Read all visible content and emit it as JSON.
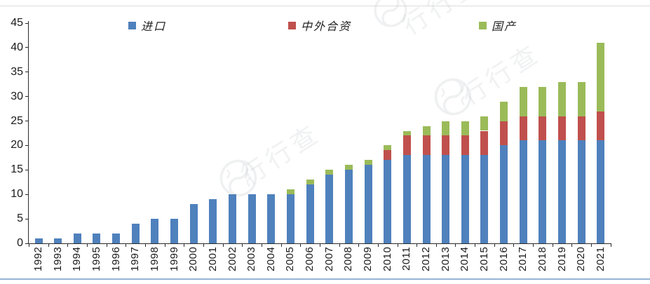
{
  "chart_data": {
    "type": "bar",
    "stacked": true,
    "categories": [
      "1992",
      "1993",
      "1994",
      "1995",
      "1996",
      "1997",
      "1998",
      "1999",
      "2000",
      "2001",
      "2002",
      "2003",
      "2004",
      "2005",
      "2006",
      "2007",
      "2008",
      "2009",
      "2010",
      "2011",
      "2012",
      "2013",
      "2014",
      "2015",
      "2016",
      "2017",
      "2018",
      "2019",
      "2020",
      "2021"
    ],
    "series": [
      {
        "name": "进口",
        "color": "#4F81BD",
        "values": [
          1,
          1,
          2,
          2,
          2,
          4,
          5,
          5,
          8,
          9,
          10,
          10,
          10,
          10,
          12,
          14,
          15,
          16,
          17,
          18,
          18,
          18,
          18,
          18,
          20,
          21,
          21,
          21,
          21,
          21
        ]
      },
      {
        "name": "中外合资",
        "color": "#C0504D",
        "values": [
          0,
          0,
          0,
          0,
          0,
          0,
          0,
          0,
          0,
          0,
          0,
          0,
          0,
          0,
          0,
          0,
          0,
          0,
          2,
          4,
          4,
          4,
          4,
          5,
          5,
          5,
          5,
          5,
          5,
          6
        ]
      },
      {
        "name": "国产",
        "color": "#9BBB59",
        "values": [
          0,
          0,
          0,
          0,
          0,
          0,
          0,
          0,
          0,
          0,
          0,
          0,
          0,
          1,
          1,
          1,
          1,
          1,
          1,
          1,
          2,
          3,
          3,
          3,
          4,
          6,
          6,
          7,
          7,
          14
        ]
      }
    ],
    "title": "",
    "xlabel": "",
    "ylabel": "",
    "ylim": [
      0,
      45
    ],
    "yticks": [
      0,
      5,
      10,
      15,
      20,
      25,
      30,
      35,
      40,
      45
    ],
    "grid": false,
    "legend_position": "top"
  },
  "legend": {
    "items": [
      {
        "label": "进口",
        "color": "#4F81BD"
      },
      {
        "label": "中外合资",
        "color": "#C0504D"
      },
      {
        "label": "国产",
        "color": "#9BBB59"
      }
    ]
  },
  "watermark": {
    "text": "行行查"
  },
  "colors": {
    "axis": "#2b2b2b",
    "top_rule": "#dcdcdc",
    "bottom_rule": "#95B3D7",
    "background": "#ffffff"
  }
}
